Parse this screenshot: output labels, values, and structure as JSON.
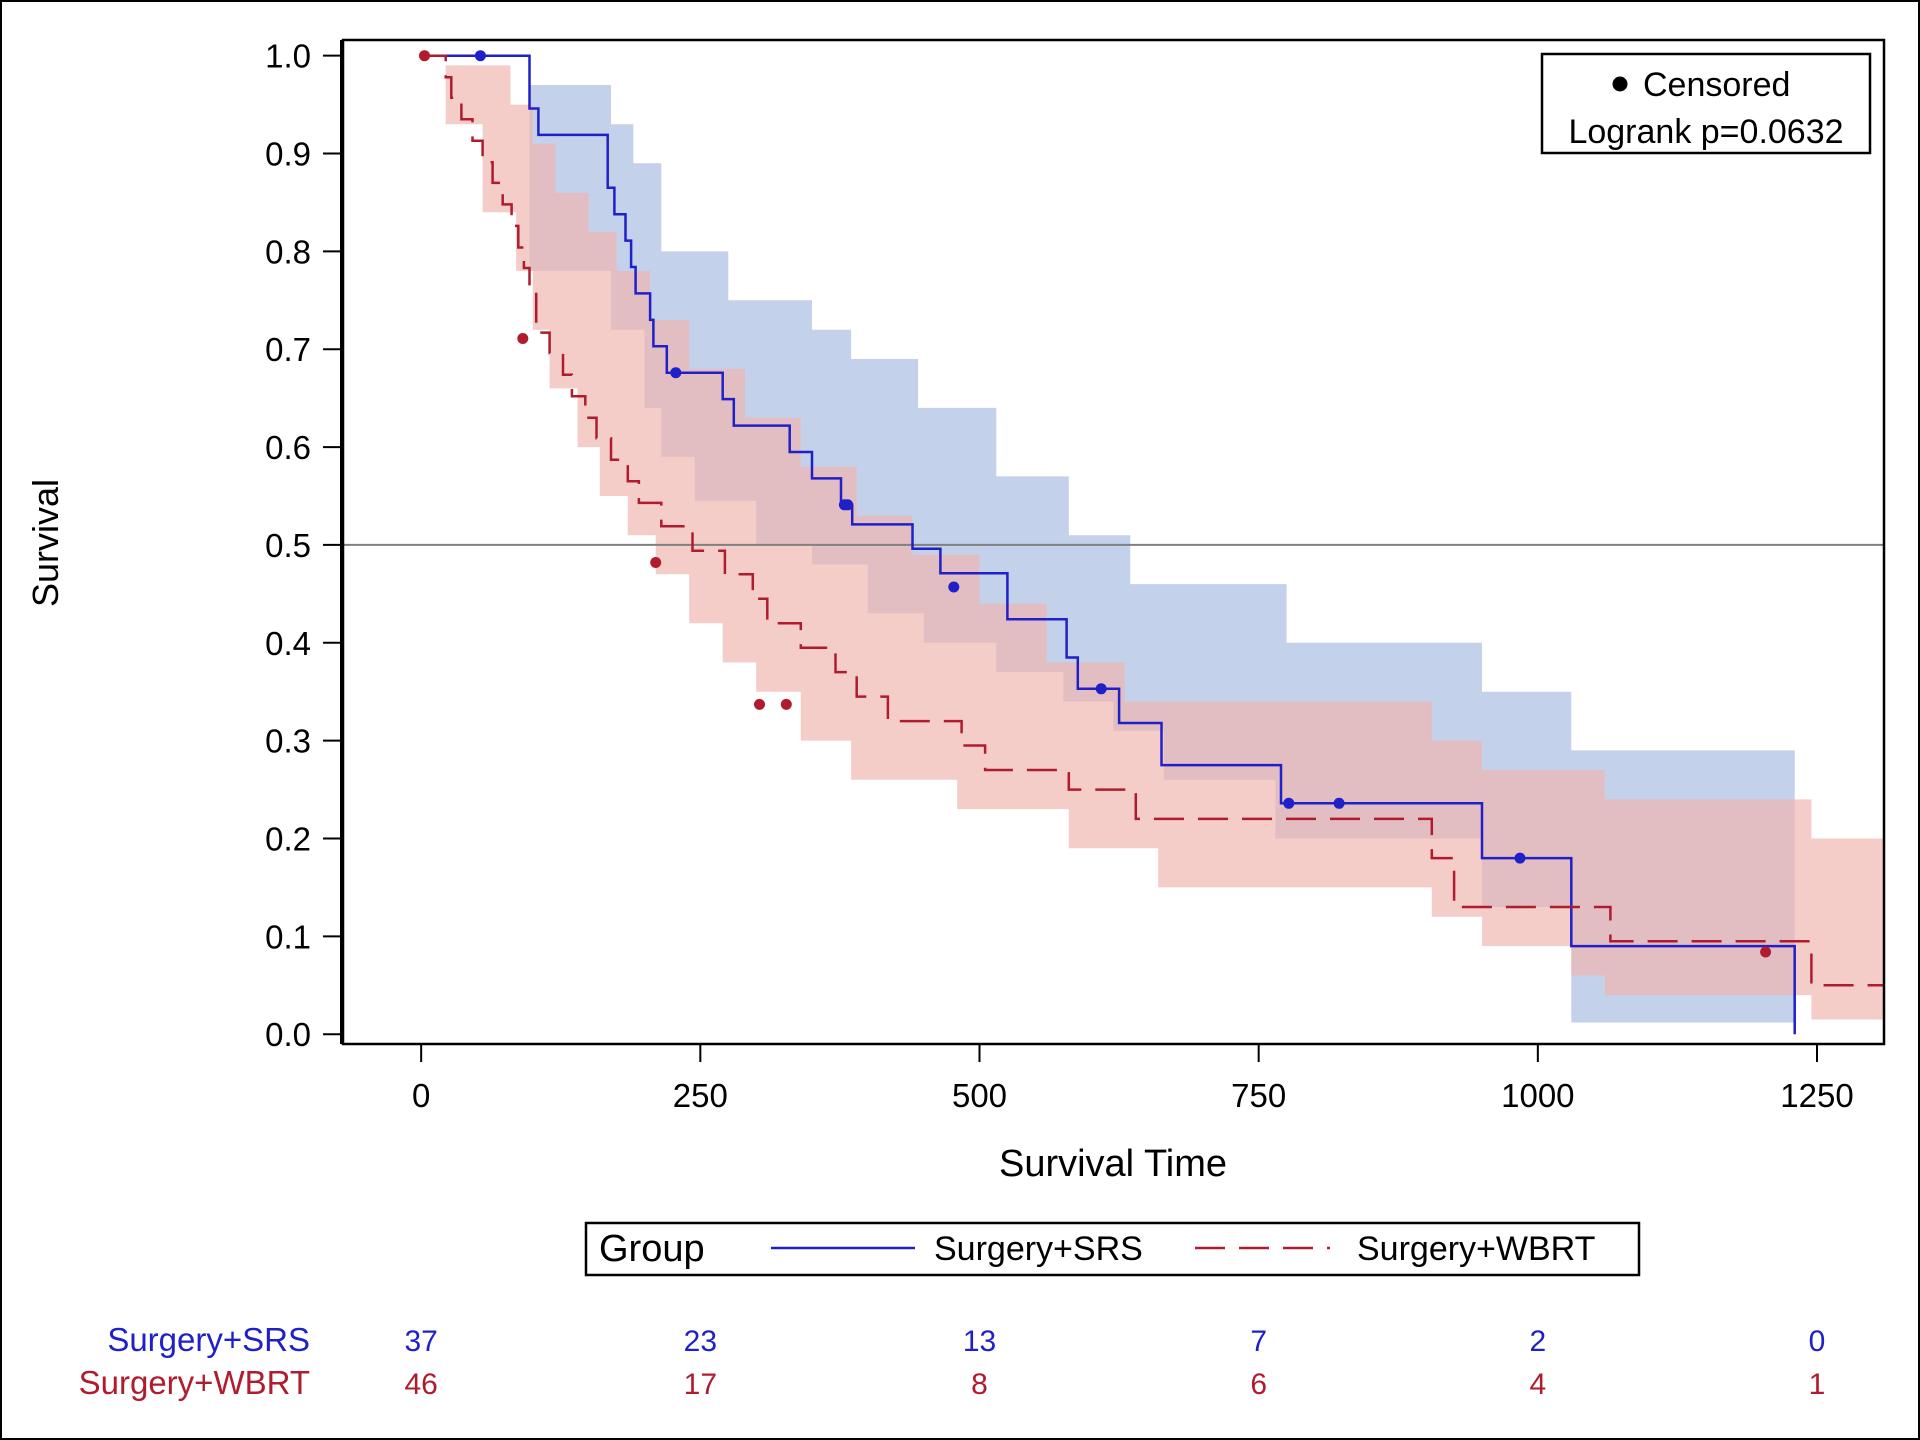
{
  "chart_data": {
    "type": "line",
    "subtype": "kaplan-meier",
    "title": "",
    "xlabel": "Survival Time",
    "ylabel": "Survival",
    "xlim": [
      -70,
      1310
    ],
    "ylim": [
      -0.01,
      1.016
    ],
    "xticks": [
      0,
      250,
      500,
      750,
      1000,
      1250
    ],
    "xtick_labels": [
      "0",
      "250",
      "500",
      "750",
      "1000",
      "1250"
    ],
    "yticks": [
      0.0,
      0.1,
      0.2,
      0.3,
      0.4,
      0.5,
      0.6,
      0.7,
      0.8,
      0.9,
      1.0
    ],
    "ytick_labels": [
      "0.0",
      "0.1",
      "0.2",
      "0.3",
      "0.4",
      "0.5",
      "0.6",
      "0.7",
      "0.8",
      "0.9",
      "1.0"
    ],
    "reference_line_y": 0.5,
    "grid": false,
    "inset": {
      "marker_label": "Censored",
      "stat_text": "Logrank p=0.0632",
      "placement": "top-right"
    },
    "legend": {
      "title": "Group",
      "placement": "bottom"
    },
    "series": [
      {
        "name": "Surgery+SRS",
        "color": "#2020c8",
        "band_color": "#a9bde3",
        "line_style": "solid",
        "steps": [
          [
            0,
            1.0
          ],
          [
            97,
            0.946
          ],
          [
            105,
            0.919
          ],
          [
            167,
            0.865
          ],
          [
            173,
            0.838
          ],
          [
            183,
            0.811
          ],
          [
            188,
            0.784
          ],
          [
            192,
            0.757
          ],
          [
            205,
            0.73
          ],
          [
            208,
            0.703
          ],
          [
            220,
            0.676
          ],
          [
            270,
            0.649
          ],
          [
            280,
            0.622
          ],
          [
            330,
            0.595
          ],
          [
            350,
            0.568
          ],
          [
            376,
            0.541
          ],
          [
            386,
            0.521
          ],
          [
            440,
            0.496
          ],
          [
            465,
            0.471
          ],
          [
            525,
            0.424
          ],
          [
            578,
            0.385
          ],
          [
            588,
            0.353
          ],
          [
            625,
            0.318
          ],
          [
            663,
            0.275
          ],
          [
            770,
            0.236
          ],
          [
            950,
            0.18
          ],
          [
            1030,
            0.09
          ],
          [
            1230,
            0.0
          ]
        ],
        "lower": [
          [
            0,
            1.0
          ],
          [
            97,
            0.78
          ],
          [
            170,
            0.72
          ],
          [
            200,
            0.64
          ],
          [
            215,
            0.59
          ],
          [
            245,
            0.545
          ],
          [
            300,
            0.5
          ],
          [
            350,
            0.48
          ],
          [
            400,
            0.43
          ],
          [
            450,
            0.4
          ],
          [
            515,
            0.37
          ],
          [
            575,
            0.34
          ],
          [
            620,
            0.31
          ],
          [
            665,
            0.26
          ],
          [
            765,
            0.2
          ],
          [
            950,
            0.13
          ],
          [
            1030,
            0.012
          ],
          [
            1230,
            0.012
          ]
        ],
        "upper": [
          [
            0,
            1.0
          ],
          [
            97,
            0.97
          ],
          [
            170,
            0.93
          ],
          [
            190,
            0.89
          ],
          [
            215,
            0.8
          ],
          [
            275,
            0.75
          ],
          [
            350,
            0.72
          ],
          [
            385,
            0.69
          ],
          [
            445,
            0.64
          ],
          [
            515,
            0.57
          ],
          [
            580,
            0.51
          ],
          [
            635,
            0.46
          ],
          [
            775,
            0.4
          ],
          [
            950,
            0.35
          ],
          [
            1030,
            0.29
          ],
          [
            1230,
            0.29
          ]
        ],
        "censored": [
          [
            53,
            1.0
          ],
          [
            228,
            0.676
          ],
          [
            379,
            0.541
          ],
          [
            382,
            0.541
          ],
          [
            477,
            0.457
          ],
          [
            609,
            0.353
          ],
          [
            777,
            0.236
          ],
          [
            822,
            0.236
          ],
          [
            984,
            0.18
          ]
        ],
        "at_risk": [
          "37",
          "23",
          "13",
          "7",
          "2",
          "0"
        ]
      },
      {
        "name": "Surgery+WBRT",
        "color": "#b01c2e",
        "band_color": "#efb6b0",
        "line_style": "dashed",
        "steps": [
          [
            0,
            1.0
          ],
          [
            22,
            0.978
          ],
          [
            27,
            0.957
          ],
          [
            36,
            0.935
          ],
          [
            46,
            0.913
          ],
          [
            55,
            0.891
          ],
          [
            64,
            0.87
          ],
          [
            73,
            0.848
          ],
          [
            81,
            0.826
          ],
          [
            87,
            0.804
          ],
          [
            92,
            0.783
          ],
          [
            97,
            0.761
          ],
          [
            103,
            0.717
          ],
          [
            115,
            0.696
          ],
          [
            127,
            0.674
          ],
          [
            135,
            0.652
          ],
          [
            147,
            0.63
          ],
          [
            157,
            0.609
          ],
          [
            170,
            0.587
          ],
          [
            185,
            0.565
          ],
          [
            195,
            0.543
          ],
          [
            215,
            0.519
          ],
          [
            243,
            0.494
          ],
          [
            272,
            0.47
          ],
          [
            297,
            0.445
          ],
          [
            310,
            0.42
          ],
          [
            340,
            0.395
          ],
          [
            371,
            0.37
          ],
          [
            390,
            0.345
          ],
          [
            418,
            0.32
          ],
          [
            484,
            0.295
          ],
          [
            505,
            0.27
          ],
          [
            580,
            0.25
          ],
          [
            640,
            0.22
          ],
          [
            905,
            0.18
          ],
          [
            925,
            0.13
          ],
          [
            1065,
            0.095
          ],
          [
            1245,
            0.05
          ],
          [
            1310,
            0.05
          ]
        ],
        "lower": [
          [
            0,
            1.0
          ],
          [
            22,
            0.93
          ],
          [
            55,
            0.84
          ],
          [
            85,
            0.78
          ],
          [
            100,
            0.72
          ],
          [
            115,
            0.66
          ],
          [
            140,
            0.6
          ],
          [
            160,
            0.55
          ],
          [
            185,
            0.51
          ],
          [
            210,
            0.47
          ],
          [
            240,
            0.42
          ],
          [
            270,
            0.38
          ],
          [
            300,
            0.35
          ],
          [
            340,
            0.3
          ],
          [
            385,
            0.26
          ],
          [
            480,
            0.23
          ],
          [
            580,
            0.19
          ],
          [
            660,
            0.15
          ],
          [
            905,
            0.12
          ],
          [
            950,
            0.09
          ],
          [
            1030,
            0.06
          ],
          [
            1060,
            0.04
          ],
          [
            1245,
            0.015
          ],
          [
            1310,
            0.015
          ]
        ],
        "upper": [
          [
            0,
            1.0
          ],
          [
            22,
            0.99
          ],
          [
            80,
            0.95
          ],
          [
            100,
            0.91
          ],
          [
            120,
            0.86
          ],
          [
            150,
            0.82
          ],
          [
            175,
            0.78
          ],
          [
            205,
            0.73
          ],
          [
            240,
            0.68
          ],
          [
            290,
            0.63
          ],
          [
            340,
            0.58
          ],
          [
            390,
            0.53
          ],
          [
            440,
            0.49
          ],
          [
            500,
            0.44
          ],
          [
            560,
            0.38
          ],
          [
            630,
            0.34
          ],
          [
            905,
            0.3
          ],
          [
            950,
            0.27
          ],
          [
            1060,
            0.24
          ],
          [
            1245,
            0.2
          ],
          [
            1310,
            0.2
          ]
        ],
        "censored": [
          [
            3,
            1.0
          ],
          [
            91,
            0.711
          ],
          [
            210,
            0.482
          ],
          [
            303,
            0.337
          ],
          [
            327,
            0.337
          ],
          [
            1204,
            0.084
          ]
        ],
        "at_risk": [
          "46",
          "17",
          "8",
          "6",
          "4",
          "1"
        ]
      }
    ]
  }
}
